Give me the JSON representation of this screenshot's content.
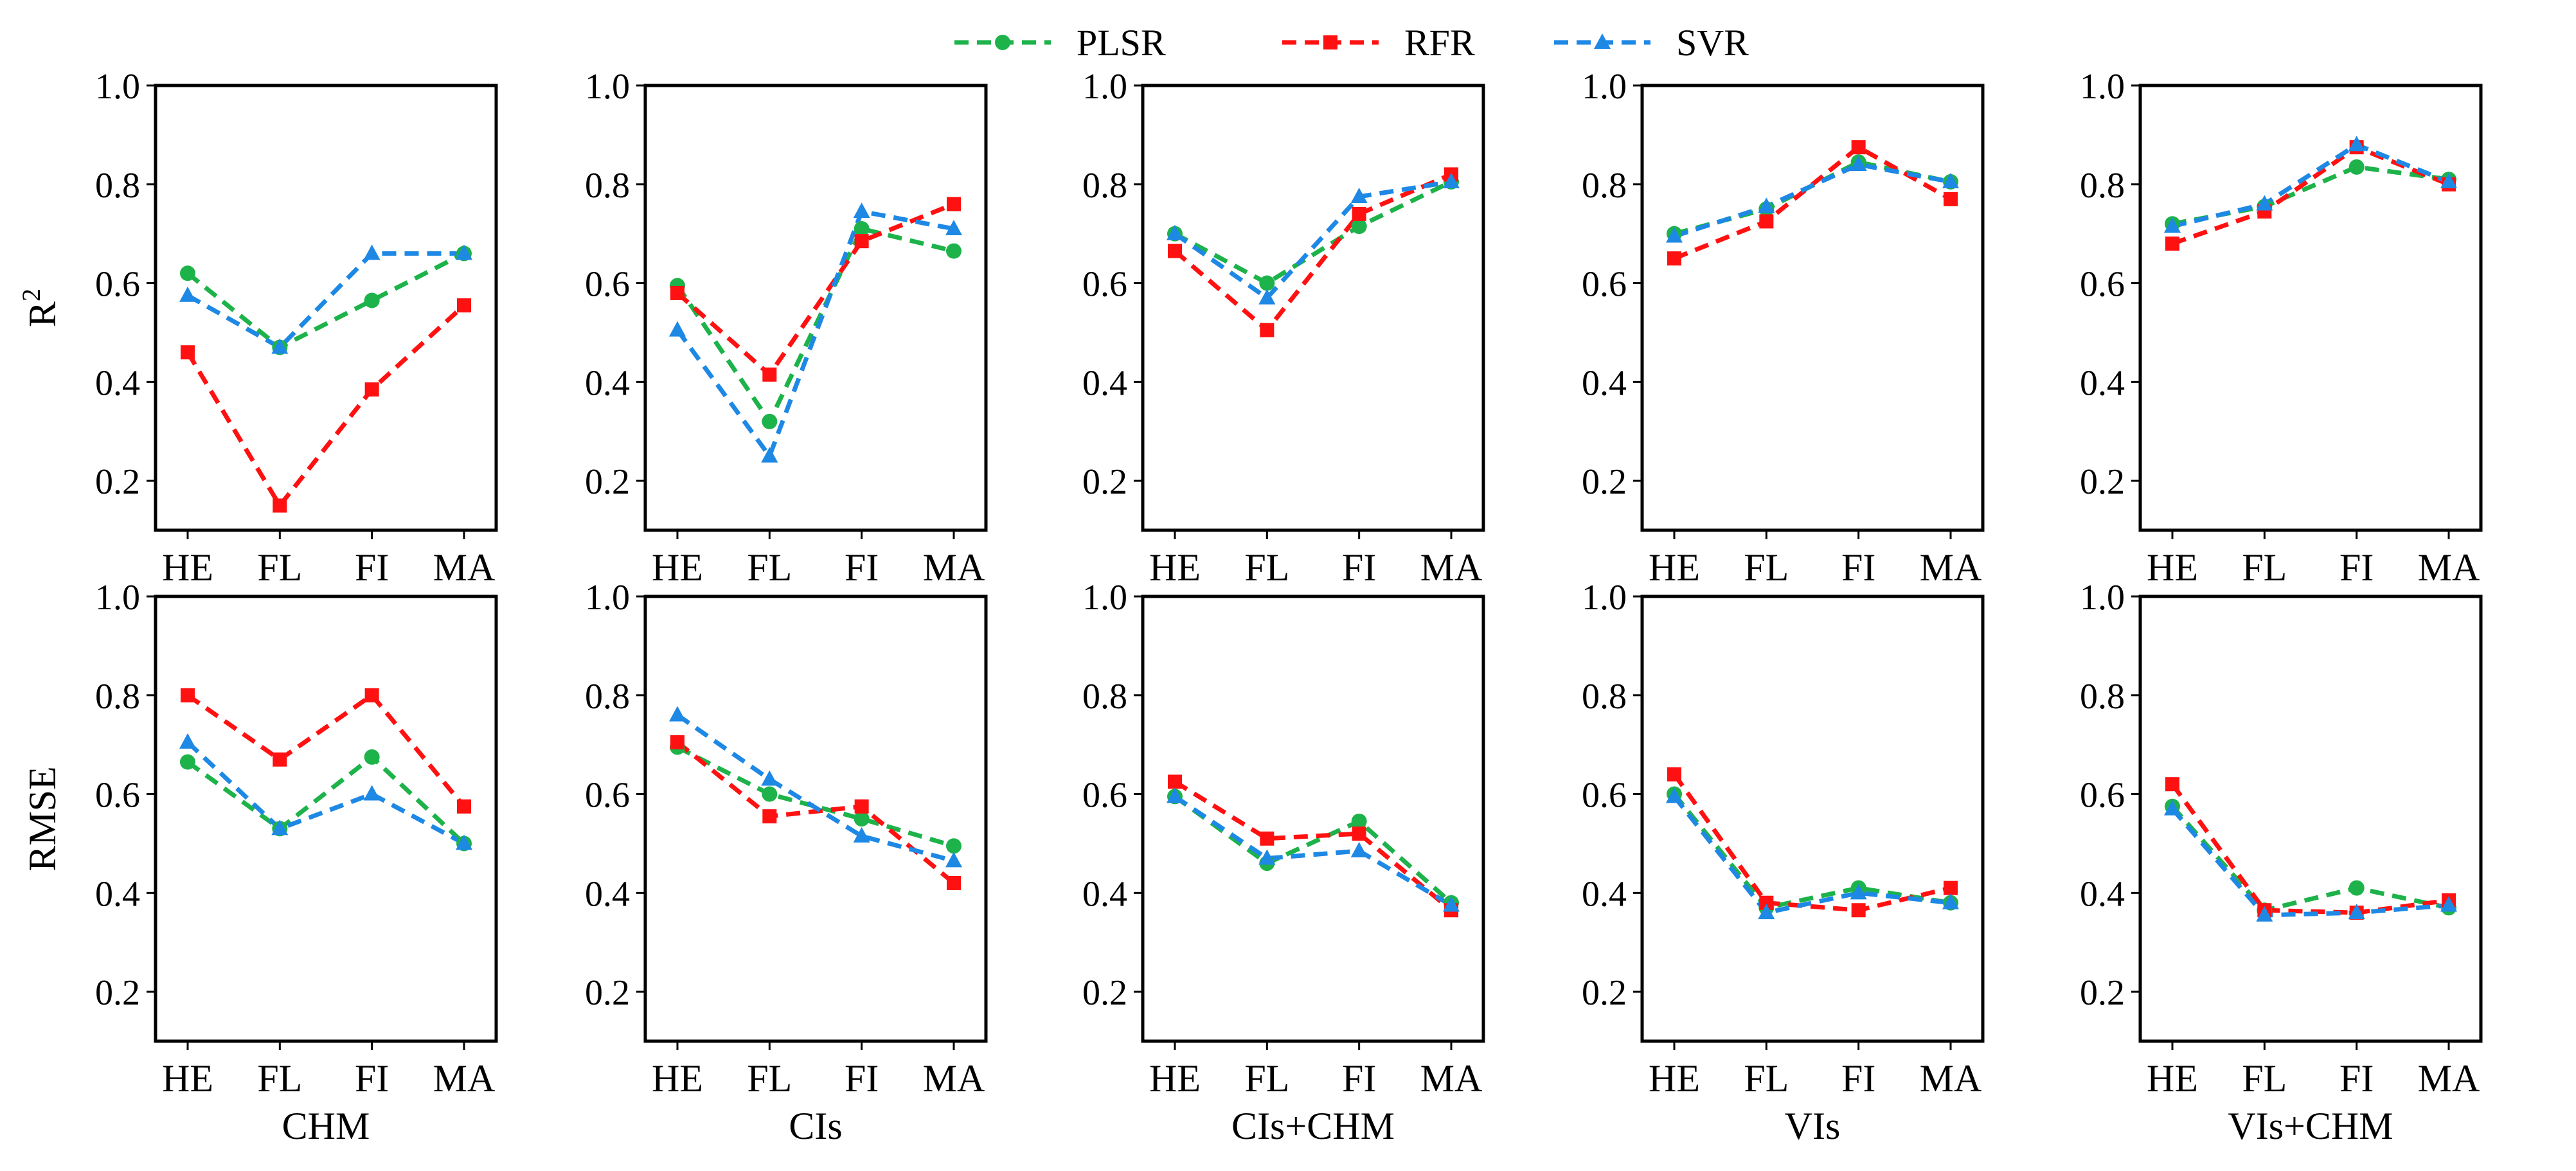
{
  "legend": {
    "entries": [
      {
        "name": "PLSR",
        "color": "#1db34a",
        "marker": "circle"
      },
      {
        "name": "RFR",
        "color": "#ff1111",
        "marker": "square"
      },
      {
        "name": "SVR",
        "color": "#1e88e5",
        "marker": "triangle"
      }
    ]
  },
  "chart_data": [
    {
      "type": "line",
      "row": "R2",
      "column": "CHM",
      "xlabel": "",
      "ylabel": "R",
      "ylabel_sup": "2",
      "categories": [
        "HE",
        "FL",
        "FI",
        "MA"
      ],
      "ylim": [
        0.1,
        1.0
      ],
      "yticks": [
        "0.2",
        "0.4",
        "0.6",
        "0.8",
        "1.0"
      ],
      "series": [
        {
          "name": "PLSR",
          "values": [
            0.62,
            0.47,
            0.565,
            0.66
          ]
        },
        {
          "name": "RFR",
          "values": [
            0.46,
            0.15,
            0.385,
            0.555
          ]
        },
        {
          "name": "SVR",
          "values": [
            0.575,
            0.47,
            0.66,
            0.66
          ]
        }
      ]
    },
    {
      "type": "line",
      "row": "R2",
      "column": "CIs",
      "xlabel": "",
      "ylabel": "",
      "ylabel_sup": "",
      "categories": [
        "HE",
        "FL",
        "FI",
        "MA"
      ],
      "ylim": [
        0.1,
        1.0
      ],
      "yticks": [
        "0.2",
        "0.4",
        "0.6",
        "0.8",
        "1.0"
      ],
      "series": [
        {
          "name": "PLSR",
          "values": [
            0.595,
            0.32,
            0.71,
            0.665
          ]
        },
        {
          "name": "RFR",
          "values": [
            0.58,
            0.415,
            0.685,
            0.76
          ]
        },
        {
          "name": "SVR",
          "values": [
            0.505,
            0.25,
            0.745,
            0.71
          ]
        }
      ]
    },
    {
      "type": "line",
      "row": "R2",
      "column": "CIs+CHM",
      "xlabel": "",
      "ylabel": "",
      "ylabel_sup": "",
      "categories": [
        "HE",
        "FL",
        "FI",
        "MA"
      ],
      "ylim": [
        0.1,
        1.0
      ],
      "yticks": [
        "0.2",
        "0.4",
        "0.6",
        "0.8",
        "1.0"
      ],
      "series": [
        {
          "name": "PLSR",
          "values": [
            0.7,
            0.6,
            0.715,
            0.805
          ]
        },
        {
          "name": "RFR",
          "values": [
            0.665,
            0.505,
            0.74,
            0.82
          ]
        },
        {
          "name": "SVR",
          "values": [
            0.7,
            0.57,
            0.775,
            0.805
          ]
        }
      ]
    },
    {
      "type": "line",
      "row": "R2",
      "column": "VIs",
      "xlabel": "",
      "ylabel": "",
      "ylabel_sup": "",
      "categories": [
        "HE",
        "FL",
        "FI",
        "MA"
      ],
      "ylim": [
        0.1,
        1.0
      ],
      "yticks": [
        "0.2",
        "0.4",
        "0.6",
        "0.8",
        "1.0"
      ],
      "series": [
        {
          "name": "PLSR",
          "values": [
            0.7,
            0.75,
            0.845,
            0.805
          ]
        },
        {
          "name": "RFR",
          "values": [
            0.65,
            0.725,
            0.875,
            0.77
          ]
        },
        {
          "name": "SVR",
          "values": [
            0.695,
            0.755,
            0.84,
            0.805
          ]
        }
      ]
    },
    {
      "type": "line",
      "row": "R2",
      "column": "VIs+CHM",
      "xlabel": "",
      "ylabel": "",
      "ylabel_sup": "",
      "categories": [
        "HE",
        "FL",
        "FI",
        "MA"
      ],
      "ylim": [
        0.1,
        1.0
      ],
      "yticks": [
        "0.2",
        "0.4",
        "0.6",
        "0.8",
        "1.0"
      ],
      "series": [
        {
          "name": "PLSR",
          "values": [
            0.72,
            0.755,
            0.835,
            0.81
          ]
        },
        {
          "name": "RFR",
          "values": [
            0.68,
            0.745,
            0.875,
            0.8
          ]
        },
        {
          "name": "SVR",
          "values": [
            0.715,
            0.76,
            0.88,
            0.805
          ]
        }
      ]
    },
    {
      "type": "line",
      "row": "RMSE",
      "column": "CHM",
      "xlabel": "CHM",
      "ylabel": "RMSE",
      "ylabel_sup": "",
      "categories": [
        "HE",
        "FL",
        "FI",
        "MA"
      ],
      "ylim": [
        0.1,
        1.0
      ],
      "yticks": [
        "0.2",
        "0.4",
        "0.6",
        "0.8",
        "1.0"
      ],
      "series": [
        {
          "name": "PLSR",
          "values": [
            0.665,
            0.53,
            0.675,
            0.5
          ]
        },
        {
          "name": "RFR",
          "values": [
            0.8,
            0.67,
            0.8,
            0.575
          ]
        },
        {
          "name": "SVR",
          "values": [
            0.705,
            0.53,
            0.6,
            0.5
          ]
        }
      ]
    },
    {
      "type": "line",
      "row": "RMSE",
      "column": "CIs",
      "xlabel": "CIs",
      "ylabel": "",
      "ylabel_sup": "",
      "categories": [
        "HE",
        "FL",
        "FI",
        "MA"
      ],
      "ylim": [
        0.1,
        1.0
      ],
      "yticks": [
        "0.2",
        "0.4",
        "0.6",
        "0.8",
        "1.0"
      ],
      "series": [
        {
          "name": "PLSR",
          "values": [
            0.695,
            0.6,
            0.55,
            0.495
          ]
        },
        {
          "name": "RFR",
          "values": [
            0.705,
            0.555,
            0.575,
            0.42
          ]
        },
        {
          "name": "SVR",
          "values": [
            0.76,
            0.63,
            0.515,
            0.465
          ]
        }
      ]
    },
    {
      "type": "line",
      "row": "RMSE",
      "column": "CIs+CHM",
      "xlabel": "CIs+CHM",
      "ylabel": "",
      "ylabel_sup": "",
      "categories": [
        "HE",
        "FL",
        "FI",
        "MA"
      ],
      "ylim": [
        0.1,
        1.0
      ],
      "yticks": [
        "0.2",
        "0.4",
        "0.6",
        "0.8",
        "1.0"
      ],
      "series": [
        {
          "name": "PLSR",
          "values": [
            0.595,
            0.46,
            0.545,
            0.38
          ]
        },
        {
          "name": "RFR",
          "values": [
            0.625,
            0.51,
            0.52,
            0.365
          ]
        },
        {
          "name": "SVR",
          "values": [
            0.595,
            0.47,
            0.485,
            0.375
          ]
        }
      ]
    },
    {
      "type": "line",
      "row": "RMSE",
      "column": "VIs",
      "xlabel": "VIs",
      "ylabel": "",
      "ylabel_sup": "",
      "categories": [
        "HE",
        "FL",
        "FI",
        "MA"
      ],
      "ylim": [
        0.1,
        1.0
      ],
      "yticks": [
        "0.2",
        "0.4",
        "0.6",
        "0.8",
        "1.0"
      ],
      "series": [
        {
          "name": "PLSR",
          "values": [
            0.6,
            0.37,
            0.41,
            0.38
          ]
        },
        {
          "name": "RFR",
          "values": [
            0.64,
            0.38,
            0.365,
            0.41
          ]
        },
        {
          "name": "SVR",
          "values": [
            0.595,
            0.36,
            0.4,
            0.38
          ]
        }
      ]
    },
    {
      "type": "line",
      "row": "RMSE",
      "column": "VIs+CHM",
      "xlabel": "VIs+CHM",
      "ylabel": "",
      "ylabel_sup": "",
      "categories": [
        "HE",
        "FL",
        "FI",
        "MA"
      ],
      "ylim": [
        0.1,
        1.0
      ],
      "yticks": [
        "0.2",
        "0.4",
        "0.6",
        "0.8",
        "1.0"
      ],
      "series": [
        {
          "name": "PLSR",
          "values": [
            0.575,
            0.365,
            0.41,
            0.37
          ]
        },
        {
          "name": "RFR",
          "values": [
            0.62,
            0.365,
            0.36,
            0.385
          ]
        },
        {
          "name": "SVR",
          "values": [
            0.57,
            0.355,
            0.36,
            0.375
          ]
        }
      ]
    }
  ]
}
